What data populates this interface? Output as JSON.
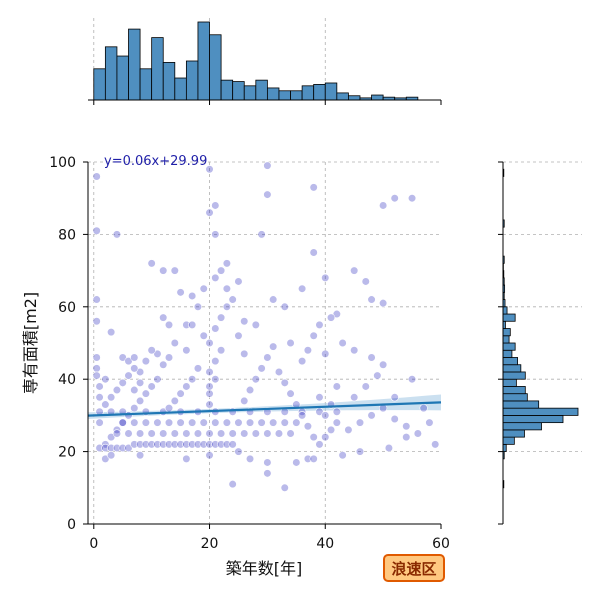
{
  "chart_data": {
    "type": "scatter",
    "title": "",
    "xlabel": "築年数[年]",
    "ylabel": "専有面積[m2]",
    "xlim": [
      -1,
      60
    ],
    "ylim": [
      0,
      100
    ],
    "xticks": [
      "0",
      "20",
      "40",
      "60"
    ],
    "yticks": [
      "0",
      "20",
      "40",
      "60",
      "80",
      "100"
    ],
    "xtick_values": [
      0,
      20,
      40,
      60
    ],
    "ytick_values": [
      0,
      20,
      40,
      60,
      80,
      100
    ],
    "grid": true,
    "regression": {
      "label": "y=0.06x+29.99",
      "slope": 0.06,
      "intercept": 29.99,
      "x_range": [
        -1,
        60
      ]
    },
    "badge": "浪速区",
    "colors": {
      "points": "#1a1ab8",
      "point_edge": "#ffffff",
      "regression": "#1f77b4",
      "band": "#a9cbe6",
      "hist_fill": "#4f8fc0",
      "hist_edge": "#000000",
      "grid": "#b0b0b0",
      "badge_bg": "#ffc880",
      "badge_border": "#e05a00"
    },
    "marginal_x_hist": {
      "bin_start": 0,
      "bin_width": 2,
      "counts": [
        44,
        75,
        62,
        100,
        44,
        88,
        53,
        31,
        55,
        110,
        92,
        28,
        26,
        20,
        28,
        17,
        13,
        13,
        20,
        22,
        24,
        10,
        6,
        3,
        7,
        4,
        3,
        4
      ]
    },
    "marginal_y_hist": {
      "bin_start": 10,
      "bin_width": 2,
      "counts": [
        2,
        0,
        0,
        0,
        3,
        8,
        28,
        53,
        95,
        148,
        185,
        88,
        60,
        55,
        33,
        55,
        44,
        36,
        22,
        30,
        15,
        18,
        6,
        30,
        10,
        5,
        3,
        4,
        3,
        2,
        1,
        3,
        0,
        0,
        0,
        0,
        3,
        0,
        0,
        0,
        0,
        0,
        0,
        2
      ]
    },
    "points": [
      [
        0.5,
        96
      ],
      [
        0.5,
        81
      ],
      [
        0.5,
        62
      ],
      [
        0.5,
        56
      ],
      [
        0.5,
        46
      ],
      [
        0.5,
        43
      ],
      [
        0.5,
        41
      ],
      [
        4,
        80
      ],
      [
        3,
        53
      ],
      [
        5,
        46
      ],
      [
        6,
        45
      ],
      [
        7,
        46
      ],
      [
        8,
        42
      ],
      [
        9,
        45
      ],
      [
        10,
        72
      ],
      [
        12,
        70
      ],
      [
        14,
        70
      ],
      [
        15,
        64
      ],
      [
        12,
        57
      ],
      [
        13,
        55
      ],
      [
        16,
        55
      ],
      [
        17,
        55
      ],
      [
        20,
        98
      ],
      [
        21,
        80
      ],
      [
        22,
        70
      ],
      [
        23,
        65
      ],
      [
        25,
        67
      ],
      [
        26,
        56
      ],
      [
        29,
        80
      ],
      [
        30,
        99
      ],
      [
        31,
        62
      ],
      [
        33,
        60
      ],
      [
        28,
        55
      ],
      [
        34,
        50
      ],
      [
        36,
        65
      ],
      [
        38,
        75
      ],
      [
        40,
        68
      ],
      [
        42,
        58
      ],
      [
        45,
        70
      ],
      [
        47,
        67
      ],
      [
        48,
        62
      ],
      [
        50,
        61
      ],
      [
        52,
        90
      ],
      [
        55,
        90
      ],
      [
        50,
        88
      ],
      [
        41,
        57
      ],
      [
        43,
        50
      ],
      [
        45,
        48
      ],
      [
        48,
        46
      ],
      [
        50,
        44
      ],
      [
        55,
        40
      ],
      [
        52,
        35
      ],
      [
        57,
        32
      ],
      [
        59,
        22
      ],
      [
        33,
        10
      ],
      [
        24,
        11
      ],
      [
        30,
        14
      ],
      [
        37,
        18
      ],
      [
        43,
        19
      ],
      [
        46,
        20
      ],
      [
        51,
        21
      ],
      [
        54,
        24
      ],
      [
        2,
        22
      ],
      [
        3,
        24
      ],
      [
        4,
        26
      ],
      [
        5,
        28
      ],
      [
        6,
        30
      ],
      [
        7,
        32
      ],
      [
        8,
        34
      ],
      [
        9,
        36
      ],
      [
        10,
        38
      ],
      [
        11,
        40
      ],
      [
        2,
        33
      ],
      [
        3,
        35
      ],
      [
        4,
        37
      ],
      [
        5,
        39
      ],
      [
        6,
        41
      ],
      [
        7,
        43
      ],
      [
        1,
        21
      ],
      [
        2,
        21
      ],
      [
        3,
        21
      ],
      [
        4,
        21
      ],
      [
        5,
        21
      ],
      [
        6,
        21
      ],
      [
        7,
        22
      ],
      [
        8,
        22
      ],
      [
        9,
        22
      ],
      [
        10,
        22
      ],
      [
        11,
        22
      ],
      [
        12,
        22
      ],
      [
        13,
        22
      ],
      [
        14,
        22
      ],
      [
        15,
        22
      ],
      [
        16,
        22
      ],
      [
        17,
        22
      ],
      [
        18,
        22
      ],
      [
        19,
        22
      ],
      [
        20,
        22
      ],
      [
        21,
        22
      ],
      [
        22,
        22
      ],
      [
        23,
        22
      ],
      [
        24,
        22
      ],
      [
        4,
        25
      ],
      [
        6,
        25
      ],
      [
        8,
        25
      ],
      [
        10,
        25
      ],
      [
        12,
        25
      ],
      [
        14,
        25
      ],
      [
        16,
        25
      ],
      [
        18,
        25
      ],
      [
        20,
        25
      ],
      [
        22,
        25
      ],
      [
        24,
        25
      ],
      [
        26,
        25
      ],
      [
        28,
        25
      ],
      [
        30,
        25
      ],
      [
        32,
        25
      ],
      [
        34,
        25
      ],
      [
        5,
        28
      ],
      [
        7,
        28
      ],
      [
        9,
        28
      ],
      [
        11,
        28
      ],
      [
        13,
        28
      ],
      [
        15,
        28
      ],
      [
        17,
        28
      ],
      [
        19,
        28
      ],
      [
        21,
        28
      ],
      [
        23,
        28
      ],
      [
        25,
        28
      ],
      [
        27,
        28
      ],
      [
        29,
        28
      ],
      [
        31,
        28
      ],
      [
        33,
        28
      ],
      [
        35,
        28
      ],
      [
        3,
        31
      ],
      [
        5,
        31
      ],
      [
        9,
        31
      ],
      [
        12,
        31
      ],
      [
        15,
        31
      ],
      [
        18,
        31
      ],
      [
        21,
        31
      ],
      [
        24,
        31
      ],
      [
        27,
        31
      ],
      [
        30,
        31
      ],
      [
        33,
        31
      ],
      [
        36,
        31
      ],
      [
        39,
        31
      ],
      [
        42,
        31
      ],
      [
        2,
        18
      ],
      [
        3,
        19
      ],
      [
        8,
        19
      ],
      [
        16,
        18
      ],
      [
        20,
        19
      ],
      [
        25,
        20
      ],
      [
        27,
        18
      ],
      [
        30,
        17
      ],
      [
        35,
        17
      ],
      [
        38,
        18
      ],
      [
        39,
        22
      ],
      [
        40,
        24
      ],
      [
        41,
        26
      ],
      [
        42,
        28
      ],
      [
        40,
        30
      ],
      [
        41,
        33
      ],
      [
        39,
        35
      ],
      [
        42,
        38
      ],
      [
        20,
        33
      ],
      [
        20,
        36
      ],
      [
        20,
        38
      ],
      [
        21,
        40
      ],
      [
        20,
        42
      ],
      [
        21,
        45
      ],
      [
        22,
        48
      ],
      [
        20,
        50
      ],
      [
        19,
        52
      ],
      [
        21,
        54
      ],
      [
        18,
        43
      ],
      [
        17,
        40
      ],
      [
        16,
        38
      ],
      [
        15,
        36
      ],
      [
        14,
        34
      ],
      [
        13,
        32
      ],
      [
        26,
        34
      ],
      [
        27,
        37
      ],
      [
        28,
        40
      ],
      [
        29,
        43
      ],
      [
        30,
        46
      ],
      [
        31,
        49
      ],
      [
        32,
        42
      ],
      [
        33,
        39
      ],
      [
        34,
        36
      ],
      [
        35,
        33
      ],
      [
        36,
        30
      ],
      [
        37,
        27
      ],
      [
        38,
        24
      ],
      [
        44,
        26
      ],
      [
        46,
        28
      ],
      [
        48,
        30
      ],
      [
        50,
        32
      ],
      [
        52,
        29
      ],
      [
        54,
        27
      ],
      [
        56,
        25
      ],
      [
        58,
        28
      ],
      [
        45,
        35
      ],
      [
        47,
        38
      ],
      [
        49,
        41
      ],
      [
        12,
        44
      ],
      [
        13,
        46
      ],
      [
        11,
        47
      ],
      [
        10,
        48
      ],
      [
        8,
        39
      ],
      [
        7,
        37
      ],
      [
        22,
        57
      ],
      [
        23,
        60
      ],
      [
        24,
        62
      ],
      [
        25,
        52
      ],
      [
        26,
        47
      ],
      [
        36,
        45
      ],
      [
        37,
        48
      ],
      [
        38,
        52
      ],
      [
        39,
        55
      ],
      [
        40,
        47
      ],
      [
        1,
        28
      ],
      [
        1,
        31
      ],
      [
        1,
        35
      ],
      [
        1,
        38
      ],
      [
        2,
        40
      ],
      [
        18,
        60
      ],
      [
        16,
        48
      ],
      [
        14,
        50
      ],
      [
        17,
        63
      ],
      [
        19,
        65
      ],
      [
        21,
        68
      ],
      [
        23,
        72
      ],
      [
        20,
        86
      ],
      [
        21,
        88
      ],
      [
        30,
        91
      ],
      [
        38,
        93
      ]
    ]
  }
}
